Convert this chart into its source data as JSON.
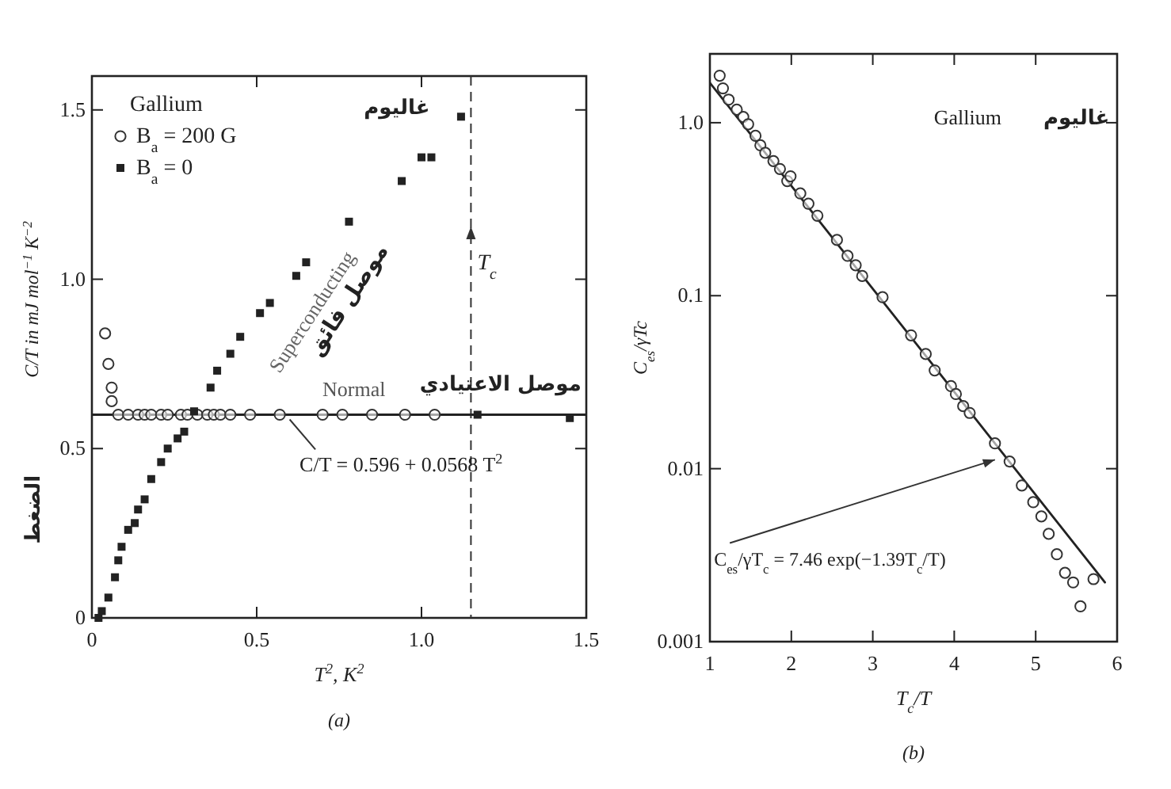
{
  "chart_data": [
    {
      "type": "scatter",
      "xlabel": "T$^{2}$, K$^{2}$",
      "ylabel": "C/T in mJ mol$^{−1}$ K$^{−2}$",
      "legend_title": "Gallium",
      "legend": "top left",
      "xlim": [
        0,
        1.5
      ],
      "ylim": [
        0,
        1.6
      ],
      "xticks": [
        0,
        0.5,
        {
          "value": 1,
          "label": "1.0"
        },
        1.5
      ],
      "yticks": [
        0,
        0.5,
        {
          "value": 1,
          "label": "1.0"
        },
        1.5
      ],
      "grid": false,
      "series": [
        {
          "name": "B$_{a}$ = 200 G",
          "type": "scatter",
          "marker": "circle",
          "color": "#333333",
          "x": [
            0.04,
            0.05,
            0.06,
            0.06,
            0.08,
            0.11,
            0.14,
            0.16,
            0.18,
            0.21,
            0.23,
            0.27,
            0.29,
            0.32,
            0.35,
            0.37,
            0.39,
            0.42,
            0.48,
            0.57,
            0.7,
            0.76,
            0.85,
            0.95,
            1.04
          ],
          "values": [
            0.84,
            0.75,
            0.68,
            0.64,
            0.6,
            0.6,
            0.6,
            0.6,
            0.6,
            0.6,
            0.6,
            0.6,
            0.6,
            0.6,
            0.6,
            0.6,
            0.6,
            0.6,
            0.6,
            0.6,
            0.6,
            0.6,
            0.6,
            0.6,
            0.6
          ]
        },
        {
          "name": "B$_{a}$ = 0",
          "type": "scatter",
          "marker": "square",
          "color": "#222222",
          "x": [
            0.02,
            0.03,
            0.05,
            0.07,
            0.08,
            0.09,
            0.11,
            0.13,
            0.14,
            0.16,
            0.18,
            0.21,
            0.23,
            0.26,
            0.28,
            0.31,
            0.36,
            0.38,
            0.42,
            0.45,
            0.51,
            0.54,
            0.62,
            0.65,
            0.78,
            0.94,
            1.0,
            1.03,
            1.12,
            1.17,
            1.45
          ],
          "values": [
            0.0,
            0.02,
            0.06,
            0.12,
            0.17,
            0.21,
            0.26,
            0.28,
            0.32,
            0.35,
            0.41,
            0.46,
            0.5,
            0.53,
            0.55,
            0.61,
            0.68,
            0.73,
            0.78,
            0.83,
            0.9,
            0.93,
            1.01,
            1.05,
            1.17,
            1.29,
            1.36,
            1.36,
            1.48,
            0.6,
            0.59
          ]
        },
        {
          "type": "line",
          "marker": "none",
          "line_style": "solid",
          "color": "#222222",
          "x": [
            0,
            1.5
          ],
          "values": [
            0.6,
            0.6
          ]
        }
      ],
      "ref_lines": [
        {
          "axis": "x",
          "value": 1.15,
          "label": "T$_{c}$",
          "line_style": "dashed",
          "color": "#333333"
        }
      ],
      "annotations": [
        "غاليوم",
        "Superconducting",
        "موصل فائق",
        "Normal",
        "موصل الاعتيادي",
        {
          "text": "C/T = 0.596 + 0.0568 T$^{2}$",
          "x": 0.6,
          "y": 0.6
        },
        "الضغط",
        "(a)"
      ]
    },
    {
      "type": "scatter",
      "xlabel": "T$_{c}$/T",
      "ylabel": "C$_{es}$/γTc",
      "log": true,
      "xlim": [
        1,
        6
      ],
      "ylim": [
        0.001,
        2.5
      ],
      "xticks": [
        1,
        2,
        3,
        4,
        5,
        6
      ],
      "yticks": [
        0.001,
        0.01,
        0.1,
        {
          "value": 1,
          "label": "1.0"
        }
      ],
      "grid": false,
      "series": [
        {
          "type": "scatter",
          "marker": "circle",
          "color": "#333333",
          "x": [
            1.12,
            1.16,
            1.23,
            1.33,
            1.41,
            1.47,
            1.56,
            1.62,
            1.68,
            1.78,
            1.86,
            1.95,
            1.99,
            2.11,
            2.21,
            2.32,
            2.56,
            2.69,
            2.79,
            2.87,
            3.12,
            3.47,
            3.65,
            3.76,
            3.96,
            4.02,
            4.11,
            4.19,
            4.5,
            4.68,
            4.83,
            4.97,
            5.07,
            5.16,
            5.26,
            5.36,
            5.46,
            5.55,
            5.71
          ],
          "values": [
            1.87,
            1.58,
            1.36,
            1.19,
            1.08,
            0.98,
            0.84,
            0.74,
            0.67,
            0.6,
            0.54,
            0.46,
            0.49,
            0.39,
            0.34,
            0.29,
            0.21,
            0.17,
            0.15,
            0.13,
            0.098,
            0.059,
            0.046,
            0.037,
            0.03,
            0.027,
            0.023,
            0.021,
            0.014,
            0.011,
            0.008,
            0.0064,
            0.0053,
            0.0042,
            0.0032,
            0.0025,
            0.0022,
            0.0016,
            0.0023
          ]
        },
        {
          "type": "line",
          "marker": "none",
          "line_style": "solid",
          "color": "#222222",
          "x": [
            1,
            5.85
          ],
          "values": [
            1.7,
            0.0022
          ]
        }
      ],
      "annotations": [
        "Gallium",
        "غاليوم",
        {
          "text": "C$_{es}$/γT$_{c}$ = 7.46 exp(−1.39T$_{c}$/T)",
          "x": 4.5,
          "y": 0.012
        },
        "(b)"
      ]
    }
  ]
}
